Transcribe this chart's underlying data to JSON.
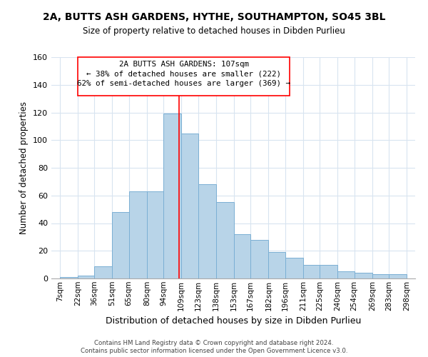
{
  "title1": "2A, BUTTS ASH GARDENS, HYTHE, SOUTHAMPTON, SO45 3BL",
  "title2": "Size of property relative to detached houses in Dibden Purlieu",
  "xlabel": "Distribution of detached houses by size in Dibden Purlieu",
  "ylabel": "Number of detached properties",
  "bar_labels": [
    "7sqm",
    "22sqm",
    "36sqm",
    "51sqm",
    "65sqm",
    "80sqm",
    "94sqm",
    "109sqm",
    "123sqm",
    "138sqm",
    "153sqm",
    "167sqm",
    "182sqm",
    "196sqm",
    "211sqm",
    "225sqm",
    "240sqm",
    "254sqm",
    "269sqm",
    "283sqm",
    "298sqm"
  ],
  "bar_values": [
    1,
    2,
    9,
    48,
    63,
    63,
    119,
    105,
    68,
    55,
    32,
    28,
    19,
    15,
    10,
    10,
    5,
    4,
    3,
    3
  ],
  "bar_color": "#b8d4e8",
  "bar_edge_color": "#7bafd4",
  "grid_color": "#d8e4f0",
  "line_color": "red",
  "annotation_title": "2A BUTTS ASH GARDENS: 107sqm",
  "annotation_line1": "← 38% of detached houses are smaller (222)",
  "annotation_line2": "62% of semi-detached houses are larger (369) →",
  "ylim": [
    0,
    160
  ],
  "footnote1": "Contains HM Land Registry data © Crown copyright and database right 2024.",
  "footnote2": "Contains public sector information licensed under the Open Government Licence v3.0."
}
